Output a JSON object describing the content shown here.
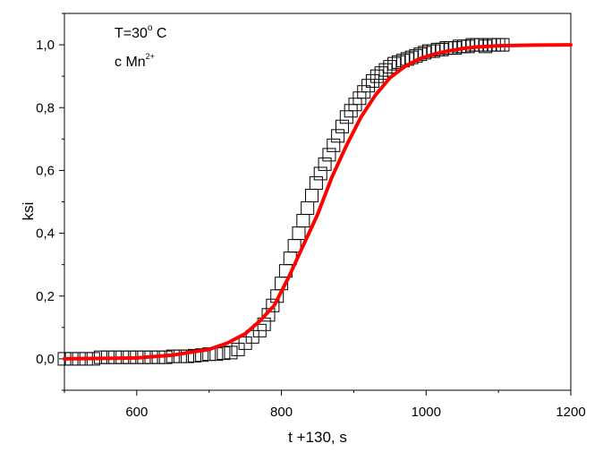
{
  "chart_data": {
    "type": "scatter",
    "xlabel": "t +130, s",
    "ylabel": "ksi",
    "xlim": [
      500,
      1200
    ],
    "ylim": [
      -0.1,
      1.1
    ],
    "x_ticks": [
      600,
      800,
      1000,
      1200
    ],
    "x_tick_labels": [
      "600",
      "800",
      "1000",
      "1200"
    ],
    "y_ticks": [
      0.0,
      0.2,
      0.4,
      0.6,
      0.8,
      1.0
    ],
    "y_tick_labels": [
      "0,0",
      "0,2",
      "0,4",
      "0,6",
      "0,8",
      "1,0"
    ],
    "annotations": {
      "line1": "T=30",
      "line1_deg": "o",
      "line1_unit": " C",
      "line2": "c Mn",
      "line2_sup": "2+"
    },
    "series": [
      {
        "kind": "markers",
        "marker": "open-square",
        "color": "#000000",
        "x": [
          500,
          510,
          520,
          530,
          540,
          550,
          560,
          570,
          580,
          590,
          600,
          610,
          620,
          630,
          640,
          650,
          660,
          670,
          680,
          690,
          700,
          710,
          720,
          730,
          740,
          750,
          760,
          770,
          776,
          782,
          788,
          794,
          800,
          806,
          812,
          818,
          824,
          830,
          836,
          842,
          848,
          854,
          860,
          866,
          872,
          878,
          884,
          890,
          896,
          902,
          908,
          914,
          920,
          926,
          932,
          938,
          944,
          950,
          956,
          962,
          968,
          974,
          980,
          986,
          992,
          998,
          1004,
          1010,
          1016,
          1022,
          1028,
          1034,
          1040,
          1046,
          1052,
          1058,
          1064,
          1070,
          1076,
          1082,
          1088,
          1094,
          1100,
          1106
        ],
        "y": [
          0.0,
          0.0,
          0.0,
          0.0,
          0.0,
          0.005,
          0.005,
          0.005,
          0.005,
          0.005,
          0.005,
          0.005,
          0.005,
          0.005,
          0.005,
          0.008,
          0.008,
          0.008,
          0.01,
          0.012,
          0.015,
          0.015,
          0.018,
          0.02,
          0.03,
          0.05,
          0.07,
          0.09,
          0.11,
          0.14,
          0.17,
          0.2,
          0.24,
          0.28,
          0.32,
          0.36,
          0.4,
          0.44,
          0.48,
          0.52,
          0.56,
          0.59,
          0.62,
          0.65,
          0.68,
          0.71,
          0.74,
          0.77,
          0.79,
          0.81,
          0.83,
          0.85,
          0.87,
          0.885,
          0.9,
          0.91,
          0.92,
          0.93,
          0.94,
          0.945,
          0.95,
          0.955,
          0.96,
          0.965,
          0.97,
          0.975,
          0.98,
          0.98,
          0.985,
          0.985,
          0.99,
          0.99,
          0.99,
          0.995,
          0.995,
          0.995,
          1.0,
          1.0,
          1.0,
          0.995,
          1.0,
          1.0,
          1.0,
          1.0
        ]
      },
      {
        "kind": "fit-line",
        "color": "#ff0000",
        "x": [
          500,
          600,
          650,
          700,
          725,
          750,
          770,
          790,
          810,
          830,
          850,
          870,
          890,
          910,
          930,
          950,
          970,
          990,
          1010,
          1030,
          1050,
          1070,
          1100,
          1150,
          1200
        ],
        "y": [
          0.0,
          0.003,
          0.012,
          0.03,
          0.05,
          0.08,
          0.12,
          0.17,
          0.26,
          0.36,
          0.46,
          0.58,
          0.68,
          0.77,
          0.84,
          0.895,
          0.93,
          0.955,
          0.97,
          0.98,
          0.988,
          0.993,
          0.997,
          0.999,
          1.0
        ]
      }
    ]
  }
}
